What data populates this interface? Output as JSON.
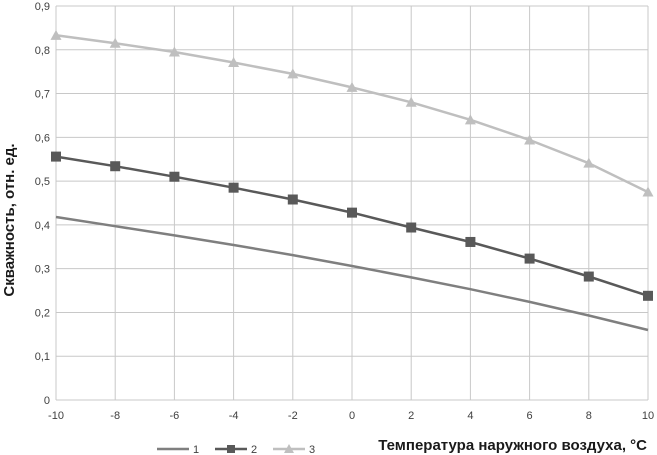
{
  "chart_data": {
    "type": "line",
    "xlabel": "Температура наружного воздуха, °С",
    "ylabel": "Скважность, отн. ед.",
    "x": [
      -10,
      -8,
      -6,
      -4,
      -2,
      0,
      2,
      4,
      6,
      8,
      10
    ],
    "x_ticks": [
      "-10",
      "-8",
      "-6",
      "-4",
      "-2",
      "0",
      "2",
      "4",
      "6",
      "8",
      "10"
    ],
    "y_ticks": [
      "0",
      "0,1",
      "0,2",
      "0,3",
      "0,4",
      "0,5",
      "0,6",
      "0,7",
      "0,8",
      "0,9"
    ],
    "xlim": [
      -10,
      10
    ],
    "ylim": [
      0,
      0.9
    ],
    "grid": true,
    "legend_position": "bottom-left",
    "series": [
      {
        "name": "1",
        "color": "#7f7f7f",
        "marker": "none",
        "values": [
          0.418,
          0.397,
          0.376,
          0.354,
          0.331,
          0.306,
          0.28,
          0.253,
          0.224,
          0.193,
          0.16
        ]
      },
      {
        "name": "2",
        "color": "#595959",
        "marker": "square",
        "values": [
          0.556,
          0.534,
          0.51,
          0.485,
          0.458,
          0.428,
          0.394,
          0.361,
          0.323,
          0.282,
          0.238
        ]
      },
      {
        "name": "3",
        "color": "#bfbfbf",
        "marker": "triangle",
        "values": [
          0.833,
          0.815,
          0.795,
          0.771,
          0.745,
          0.714,
          0.68,
          0.64,
          0.594,
          0.541,
          0.475
        ]
      }
    ]
  }
}
